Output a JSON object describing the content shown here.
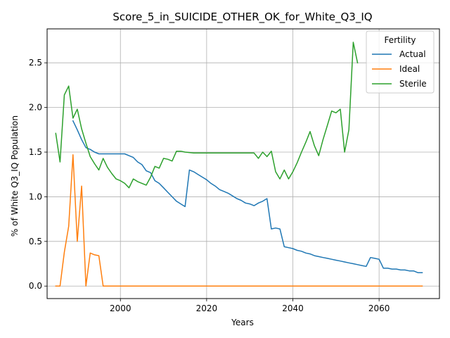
{
  "chart_data": {
    "type": "line",
    "title": "Score_5_in_SUICIDE_OTHER_OK_for_White_Q3_IQ",
    "xlabel": "Years",
    "ylabel": "% of White Q3_IQ Population",
    "xlim": [
      1983,
      2074
    ],
    "ylim": [
      -0.14,
      2.88
    ],
    "xticks": [
      2000,
      2020,
      2040,
      2060
    ],
    "yticks": [
      0.0,
      0.5,
      1.0,
      1.5,
      2.0,
      2.5
    ],
    "ytick_labels": [
      "0.0",
      "0.5",
      "1.0",
      "1.5",
      "2.0",
      "2.5"
    ],
    "grid": true,
    "legend": {
      "title": "Fertility",
      "placement": "top-right"
    },
    "series": [
      {
        "name": "Actual",
        "color": "#1f77b4",
        "x": [
          1989,
          1990,
          1991,
          1992,
          1993,
          1994,
          1995,
          1996,
          1997,
          1998,
          1999,
          2000,
          2001,
          2002,
          2003,
          2004,
          2005,
          2006,
          2007,
          2008,
          2009,
          2010,
          2011,
          2012,
          2013,
          2014,
          2015,
          2016,
          2017,
          2018,
          2019,
          2020,
          2021,
          2022,
          2023,
          2024,
          2025,
          2026,
          2027,
          2028,
          2029,
          2030,
          2031,
          2032,
          2033,
          2034,
          2035,
          2036,
          2037,
          2038,
          2039,
          2040,
          2041,
          2042,
          2043,
          2044,
          2045,
          2046,
          2047,
          2048,
          2049,
          2050,
          2051,
          2052,
          2053,
          2054,
          2055,
          2056,
          2057,
          2058,
          2059,
          2060,
          2061,
          2062,
          2063,
          2064,
          2065,
          2066,
          2067,
          2068,
          2069,
          2070
        ],
        "y": [
          1.85,
          1.75,
          1.64,
          1.55,
          1.53,
          1.5,
          1.48,
          1.48,
          1.48,
          1.48,
          1.48,
          1.48,
          1.48,
          1.46,
          1.44,
          1.39,
          1.36,
          1.29,
          1.27,
          1.18,
          1.15,
          1.1,
          1.05,
          1.0,
          0.95,
          0.92,
          0.89,
          1.3,
          1.28,
          1.25,
          1.22,
          1.19,
          1.15,
          1.12,
          1.08,
          1.06,
          1.04,
          1.01,
          0.98,
          0.96,
          0.93,
          0.92,
          0.9,
          0.93,
          0.95,
          0.98,
          0.64,
          0.65,
          0.64,
          0.44,
          0.43,
          0.42,
          0.4,
          0.39,
          0.37,
          0.36,
          0.34,
          0.33,
          0.32,
          0.31,
          0.3,
          0.29,
          0.28,
          0.27,
          0.26,
          0.25,
          0.24,
          0.23,
          0.22,
          0.32,
          0.31,
          0.3,
          0.2,
          0.2,
          0.19,
          0.19,
          0.18,
          0.18,
          0.17,
          0.17,
          0.15,
          0.15
        ]
      },
      {
        "name": "Ideal",
        "color": "#ff7f0e",
        "x": [
          1985,
          1986,
          1987,
          1988,
          1989,
          1990,
          1991,
          1992,
          1993,
          1994,
          1995,
          1996,
          1997,
          2000,
          2010,
          2020,
          2030,
          2040,
          2050,
          2060,
          2070
        ],
        "y": [
          0.0,
          0.0,
          0.38,
          0.67,
          1.47,
          0.5,
          1.12,
          0.0,
          0.37,
          0.35,
          0.34,
          0.0,
          0.0,
          0.0,
          0.0,
          0.0,
          0.0,
          0.0,
          0.0,
          0.0,
          0.0
        ]
      },
      {
        "name": "Sterile",
        "color": "#2ca02c",
        "x": [
          1985,
          1986,
          1987,
          1988,
          1989,
          1990,
          1991,
          1992,
          1993,
          1994,
          1995,
          1996,
          1997,
          1998,
          1999,
          2000,
          2001,
          2002,
          2003,
          2004,
          2005,
          2006,
          2007,
          2008,
          2009,
          2010,
          2011,
          2012,
          2013,
          2014,
          2015,
          2016,
          2017,
          2018,
          2019,
          2020,
          2021,
          2022,
          2023,
          2024,
          2025,
          2026,
          2027,
          2028,
          2029,
          2030,
          2031,
          2032,
          2033,
          2034,
          2035,
          2036,
          2037,
          2038,
          2039,
          2040,
          2041,
          2042,
          2043,
          2044,
          2045,
          2046,
          2047,
          2048,
          2049,
          2050,
          2051,
          2052,
          2053,
          2054,
          2055
        ],
        "y": [
          1.71,
          1.39,
          2.14,
          2.24,
          1.88,
          1.98,
          1.76,
          1.6,
          1.45,
          1.37,
          1.3,
          1.43,
          1.33,
          1.26,
          1.2,
          1.18,
          1.15,
          1.1,
          1.2,
          1.17,
          1.15,
          1.13,
          1.22,
          1.34,
          1.32,
          1.43,
          1.42,
          1.4,
          1.51,
          1.51,
          1.5,
          1.495,
          1.49,
          1.49,
          1.49,
          1.49,
          1.49,
          1.49,
          1.49,
          1.49,
          1.49,
          1.49,
          1.49,
          1.49,
          1.49,
          1.49,
          1.49,
          1.43,
          1.5,
          1.45,
          1.51,
          1.28,
          1.2,
          1.3,
          1.2,
          1.28,
          1.38,
          1.5,
          1.61,
          1.73,
          1.57,
          1.46,
          1.64,
          1.8,
          1.96,
          1.94,
          1.98,
          1.5,
          1.75,
          2.73,
          2.5
        ]
      }
    ]
  }
}
